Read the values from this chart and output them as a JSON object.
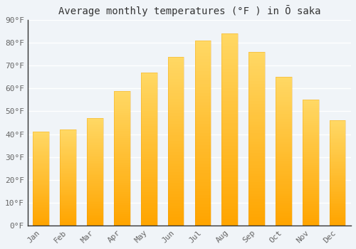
{
  "title": "Average monthly temperatures (°F ) in Ō saka",
  "months": [
    "Jan",
    "Feb",
    "Mar",
    "Apr",
    "May",
    "Jun",
    "Jul",
    "Aug",
    "Sep",
    "Oct",
    "Nov",
    "Dec"
  ],
  "values": [
    41,
    42,
    47,
    59,
    67,
    74,
    81,
    84,
    76,
    65,
    55,
    46
  ],
  "ylim": [
    0,
    90
  ],
  "yticks": [
    0,
    10,
    20,
    30,
    40,
    50,
    60,
    70,
    80,
    90
  ],
  "ytick_labels": [
    "0°F",
    "10°F",
    "20°F",
    "30°F",
    "40°F",
    "50°F",
    "60°F",
    "70°F",
    "80°F",
    "90°F"
  ],
  "background_color": "#f0f4f8",
  "grid_color": "#ffffff",
  "bar_color_bottom": "#FFA500",
  "bar_color_top": "#FFD966",
  "spine_color": "#333333",
  "title_fontsize": 10,
  "tick_fontsize": 8,
  "font_family": "monospace",
  "tick_color": "#666666",
  "bar_width": 0.6
}
